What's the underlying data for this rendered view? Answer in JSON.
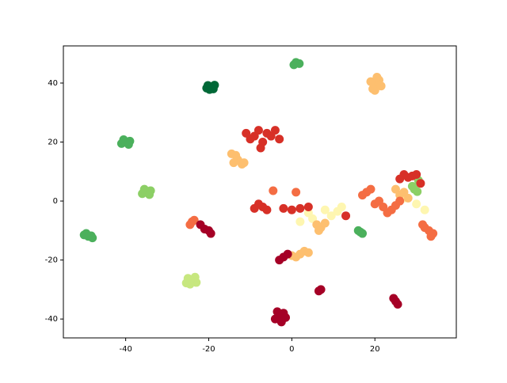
{
  "chart_data": {
    "type": "scatter",
    "xlim": [
      -55,
      39.6
    ],
    "ylim": [
      -46.4,
      52.6
    ],
    "xticks": [
      -40,
      -20,
      0,
      20
    ],
    "yticks": [
      -40,
      -20,
      0,
      20,
      40
    ],
    "grid": false,
    "series": [
      {
        "color": "#006837",
        "x": [
          -19.5,
          -20.2,
          -18.9,
          -19.8,
          -18.6,
          -20.5
        ],
        "values": [
          38.5,
          39.2,
          38.0,
          37.8,
          39.3,
          38.3
        ]
      },
      {
        "color": "#4bb05c",
        "x": [
          -40,
          -41,
          -39,
          -40.5,
          -39.3,
          -49,
          -50,
          -48,
          -49.5,
          -48.3,
          1,
          1.8,
          0.5,
          16.5,
          16,
          17
        ],
        "values": [
          20,
          19.5,
          20.3,
          20.8,
          19.2,
          -12,
          -11.5,
          -12.5,
          -11,
          -11.8,
          47,
          46.6,
          46.2,
          -10.5,
          -10,
          -11
        ]
      },
      {
        "color": "#8ccf65",
        "x": [
          -35,
          -36,
          -34,
          -35.5,
          -34.3,
          29.5,
          30.2,
          29,
          30.5
        ],
        "values": [
          3,
          2.5,
          3.5,
          4,
          2.2,
          4,
          3.2,
          5,
          7
        ]
      },
      {
        "color": "#c7e77f",
        "x": [
          -24,
          -25,
          -23,
          -24.5,
          -23.3,
          -25.4
        ],
        "values": [
          -27,
          -26.2,
          -27.6,
          -28.2,
          -25.8,
          -27.8
        ]
      },
      {
        "color": "#fef6b0",
        "x": [
          4,
          5,
          8,
          9.5,
          12,
          11,
          2,
          32,
          30,
          27
        ],
        "values": [
          -4,
          -6,
          -3,
          -5,
          -2,
          -3.5,
          -7,
          -3,
          -1,
          1
        ]
      },
      {
        "color": "#fdbf6f",
        "x": [
          20,
          21,
          19,
          20.5,
          19.5,
          20,
          21.5,
          -13,
          -14,
          -12,
          -13.5,
          -14.5,
          -11.5,
          6,
          7,
          8,
          6.5,
          2,
          1,
          3,
          0,
          4,
          26,
          27,
          28,
          25
        ],
        "values": [
          40,
          41,
          40.5,
          42,
          38,
          37.5,
          39,
          14,
          13,
          12.5,
          15.5,
          16,
          13,
          -8,
          -9,
          -7.5,
          -10,
          -18,
          -19,
          -17,
          -18.5,
          -17.5,
          2,
          3,
          1,
          4
        ]
      },
      {
        "color": "#f46d43",
        "x": [
          -24,
          -24.5,
          -23.5,
          20,
          21,
          22,
          24,
          25,
          26,
          23,
          18,
          19,
          17,
          33,
          34,
          32,
          33.5,
          31.5,
          -4.5,
          1
        ],
        "values": [
          -7,
          -8,
          -6.5,
          -1,
          0,
          -2,
          -3,
          -1.5,
          0,
          -4,
          3,
          4,
          2,
          -10,
          -11,
          -9,
          -12,
          -8,
          3.5,
          3
        ]
      },
      {
        "color": "#d73027",
        "x": [
          -9,
          -8,
          -10,
          -7,
          -6,
          -5,
          -4,
          -11,
          -3,
          -7.5,
          -7,
          -8,
          -6,
          -9,
          -2,
          0,
          2,
          4,
          28,
          27,
          29,
          26,
          30,
          31,
          13
        ],
        "values": [
          22,
          24,
          21,
          20,
          23,
          22,
          24,
          23,
          21,
          18,
          -2,
          -1,
          -3,
          -2.5,
          -2.5,
          -3,
          -2.5,
          -2,
          8,
          9,
          8.5,
          7.5,
          9,
          6,
          -5
        ]
      },
      {
        "color": "#a50026",
        "x": [
          -20,
          -21,
          -19.5,
          -22,
          -3,
          -2,
          -4,
          -1.5,
          -3.5,
          -2.5,
          25,
          24.5,
          25.5,
          7,
          6.5,
          -2,
          -3,
          -1
        ],
        "values": [
          -10,
          -9.5,
          -11,
          -8,
          -39,
          -38,
          -40,
          -39.5,
          -37.5,
          -41,
          -34,
          -33,
          -35,
          -30,
          -30.5,
          -19,
          -20,
          -18
        ]
      }
    ]
  }
}
